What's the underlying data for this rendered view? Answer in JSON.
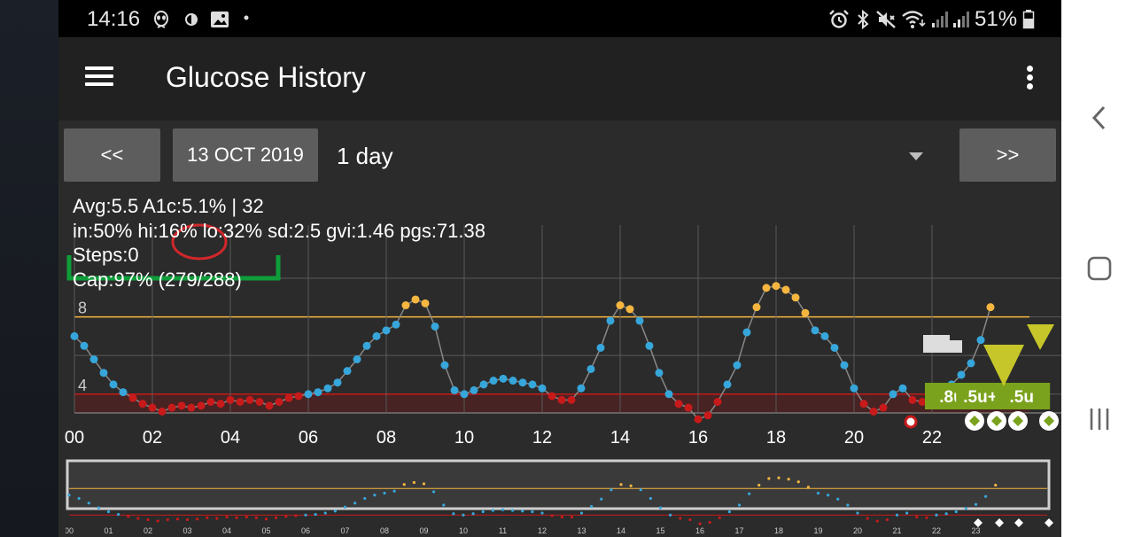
{
  "status_bar": {
    "time": "14:16",
    "left_icons": [
      "alien-app-icon",
      "contrast-icon",
      "image-icon",
      "dot-icon"
    ],
    "right_icons": [
      "alarm-icon",
      "bluetooth-icon",
      "mute-icon",
      "wifi-icon",
      "signal-icon",
      "signal-icon",
      "battery-icon"
    ],
    "battery": "51%"
  },
  "toolbar": {
    "title": "Glucose History",
    "menu_icon": "hamburger-menu-icon",
    "overflow_icon": "more-vert-icon"
  },
  "controls": {
    "prev_label": "<<",
    "date_label": "13 OCT 2019",
    "range_value": "1 day",
    "next_label": ">>"
  },
  "stats": {
    "line1": "Avg:5.5 A1c:5.1% | 32",
    "line2": "in:50% hi:16% lo:32% sd:2.5 gvi:1.46 pgs:71.38",
    "steps": "Steps:0",
    "cap": "Cap:97% (279/288)"
  },
  "colors": {
    "in_range": "#36a6db",
    "high": "#f5b640",
    "low": "#c81a1a",
    "annotation_red": "#d0272b",
    "annotation_green": "#0f9d3a",
    "treatment_green": "#7aa21c",
    "treatment_yellow": "#cfcf2a"
  },
  "chart_data": {
    "type": "scatter",
    "title": "",
    "xlabel": "",
    "ylabel": "",
    "x_unit": "hours",
    "xlim": [
      0,
      25
    ],
    "ylim": [
      1.5,
      11
    ],
    "x_ticks": [
      "00",
      "02",
      "04",
      "06",
      "08",
      "10",
      "12",
      "14",
      "16",
      "18",
      "20",
      "22"
    ],
    "y_ticks": [
      "4",
      "8"
    ],
    "high_line": 8,
    "low_line": 4,
    "grid": true,
    "series": [
      {
        "x": [
          0,
          0.25,
          0.5,
          0.75,
          1.0,
          1.25,
          1.5,
          1.75,
          2.0,
          2.25,
          2.5,
          2.75,
          3.0,
          3.25,
          3.5,
          3.75,
          4.0,
          4.25,
          4.5,
          4.75,
          5.0,
          5.25,
          5.5,
          5.75,
          6.0,
          6.25,
          6.5,
          6.75,
          7.0,
          7.25,
          7.5,
          7.75,
          8.0,
          8.25,
          8.5,
          8.75,
          9.0,
          9.25,
          9.5,
          9.75,
          10.0,
          10.25,
          10.5,
          10.75,
          11.0,
          11.25,
          11.5,
          11.75,
          12.0,
          12.25,
          12.5,
          12.75,
          13.0,
          13.25,
          13.5,
          13.75,
          14.0,
          14.25,
          14.5,
          14.75,
          15.0,
          15.25,
          15.5,
          15.75,
          16.0,
          16.25,
          16.5,
          16.75,
          17.0,
          17.25,
          17.5,
          17.75,
          18.0,
          18.25,
          18.5,
          18.75,
          19.0,
          19.25,
          19.5,
          19.75,
          20.0,
          20.25,
          20.5,
          20.75,
          21.0,
          21.25,
          21.5,
          21.75,
          22.0,
          22.25,
          22.5,
          22.75,
          23.0,
          23.25,
          23.5
        ],
        "y": [
          7.0,
          6.5,
          5.8,
          5.1,
          4.5,
          4.1,
          3.8,
          3.5,
          3.3,
          3.1,
          3.3,
          3.4,
          3.3,
          3.4,
          3.6,
          3.5,
          3.7,
          3.6,
          3.7,
          3.6,
          3.4,
          3.6,
          3.8,
          3.9,
          4.0,
          4.1,
          4.3,
          4.6,
          5.2,
          5.8,
          6.5,
          7.0,
          7.3,
          7.6,
          8.6,
          8.9,
          8.7,
          7.5,
          5.5,
          4.2,
          4.0,
          4.2,
          4.5,
          4.7,
          4.8,
          4.7,
          4.6,
          4.5,
          4.3,
          3.9,
          3.7,
          3.7,
          4.3,
          5.3,
          6.4,
          7.8,
          8.6,
          8.4,
          7.8,
          6.5,
          5.1,
          4.0,
          3.5,
          3.3,
          2.7,
          2.9,
          3.6,
          4.5,
          5.5,
          7.2,
          8.5,
          9.5,
          9.6,
          9.4,
          9.0,
          8.2,
          7.3,
          7.0,
          6.4,
          5.5,
          4.3,
          3.5,
          3.1,
          3.3,
          4.0,
          4.3,
          3.7,
          3.6,
          4.0,
          4.2,
          4.5,
          5.0,
          5.6,
          6.8,
          8.5
        ]
      }
    ],
    "annotations": [
      "3-3-red-circle",
      "green-underline-stats"
    ],
    "treatments": [
      {
        "label": ".8u",
        "x": 22.5
      },
      {
        "label": ".5u+.",
        "x": 23.3
      },
      {
        "label": ".5u",
        "x": 24.3
      }
    ]
  },
  "preview": {
    "x_ticks": [
      "00",
      "01",
      "02",
      "03",
      "04",
      "05",
      "06",
      "07",
      "08",
      "09",
      "10",
      "11",
      "12",
      "13",
      "14",
      "15",
      "16",
      "17",
      "18",
      "19",
      "20",
      "21",
      "22",
      "23"
    ]
  },
  "system_nav": {
    "back_icon": "back-chevron-icon",
    "home_icon": "home-square-icon",
    "recents_icon": "recents-lines-icon"
  }
}
